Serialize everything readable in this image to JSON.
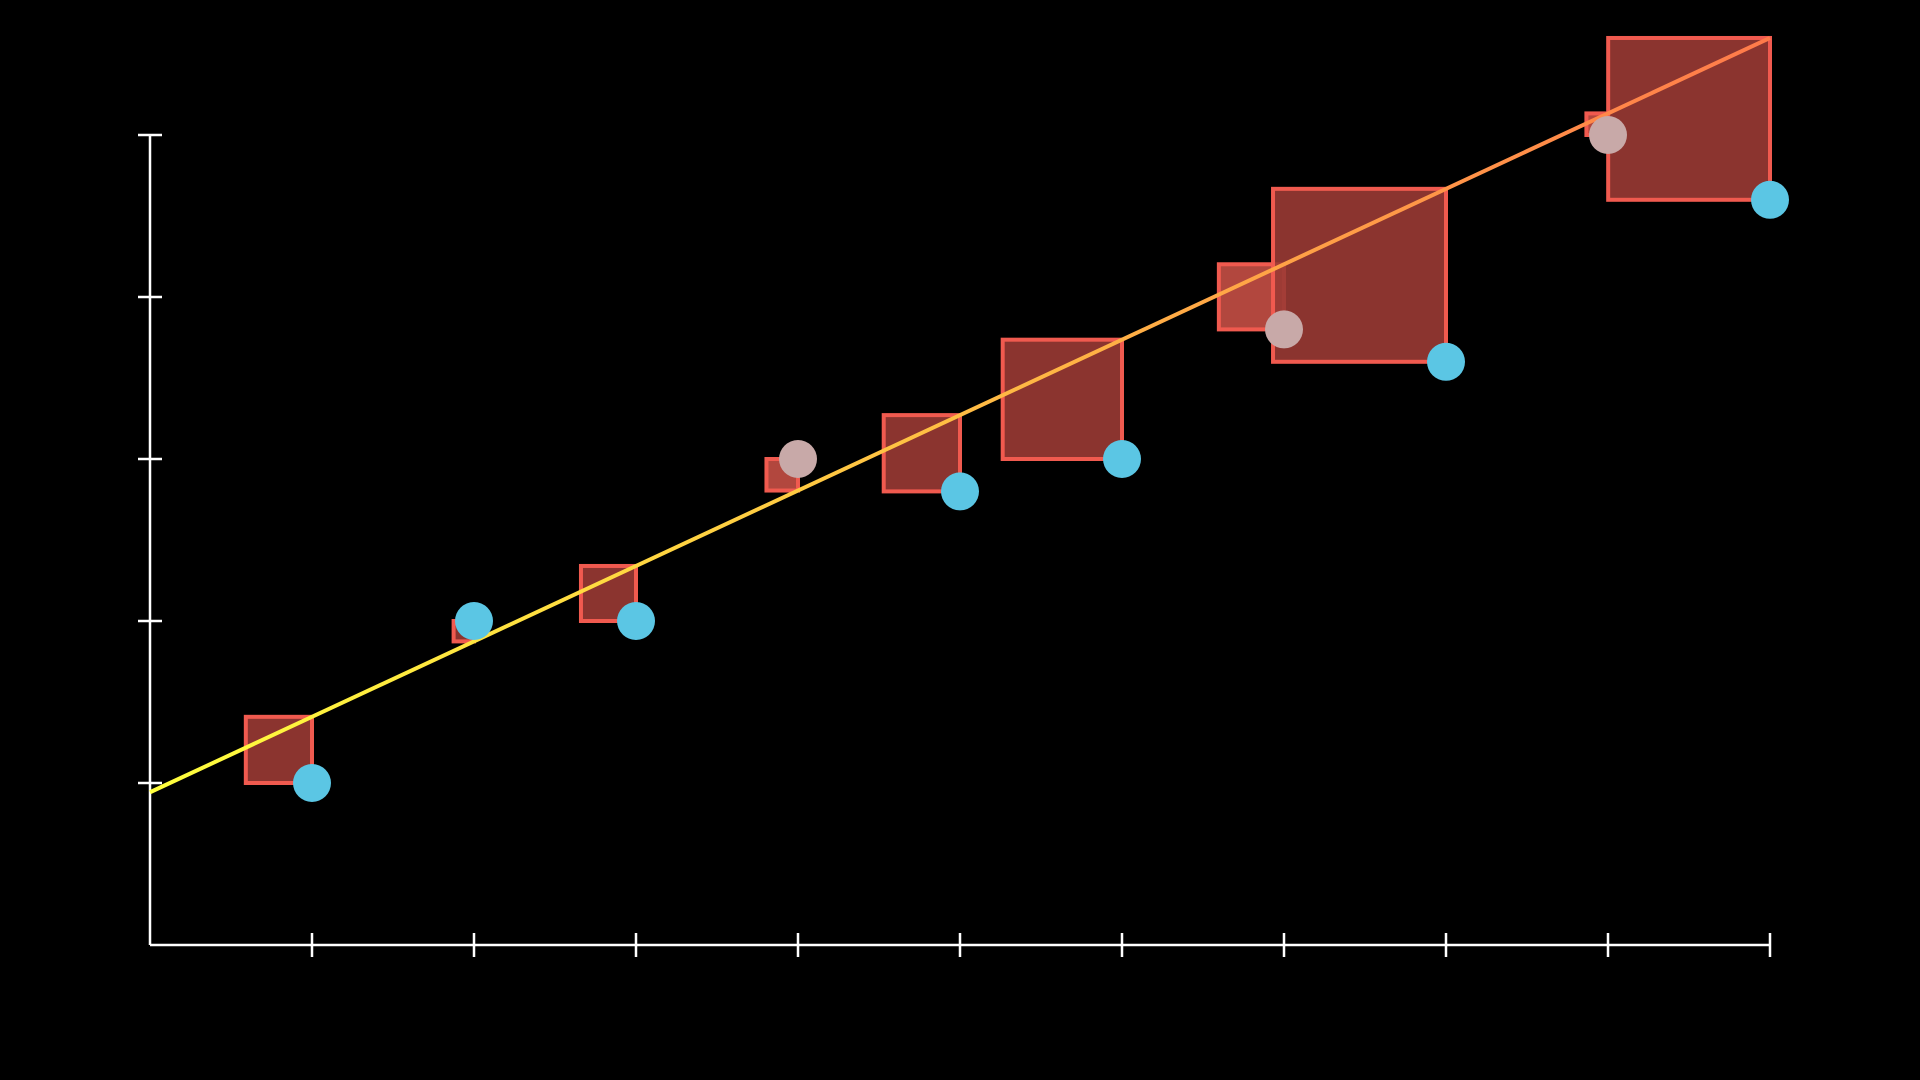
{
  "chart_data": {
    "type": "scatter",
    "title": "",
    "xlabel": "",
    "ylabel": "",
    "xlim": [
      0,
      10
    ],
    "ylim": [
      0,
      5
    ],
    "x_ticks": [
      1,
      2,
      3,
      4,
      5,
      6,
      7,
      8,
      9,
      10
    ],
    "y_ticks": [
      1,
      2,
      3,
      4,
      5
    ],
    "grid": false,
    "points": [
      {
        "x": 1,
        "y": 1,
        "highlight": false
      },
      {
        "x": 2,
        "y": 2,
        "highlight": false
      },
      {
        "x": 3,
        "y": 2,
        "highlight": false
      },
      {
        "x": 4,
        "y": 3,
        "highlight": true
      },
      {
        "x": 5,
        "y": 2.8,
        "highlight": false
      },
      {
        "x": 6,
        "y": 3,
        "highlight": false
      },
      {
        "x": 7,
        "y": 3.8,
        "highlight": true
      },
      {
        "x": 8,
        "y": 3.6,
        "highlight": false
      },
      {
        "x": 9,
        "y": 5,
        "highlight": true
      },
      {
        "x": 10,
        "y": 4.6,
        "highlight": false
      }
    ],
    "fit_line": {
      "slope": 0.4656,
      "intercept": 0.9429
    },
    "residual_square_style": {
      "base_fill": "#9a3a34",
      "highlight_fill": "#d9574c",
      "stroke": "#f05a4f"
    },
    "colors": {
      "background": "#000000",
      "axis": "#ffffff",
      "point": "#5bc6e4",
      "point_highlight": "#c8a9a8",
      "line_start": "#ffff3d",
      "line_end": "#ff7a4a"
    }
  }
}
